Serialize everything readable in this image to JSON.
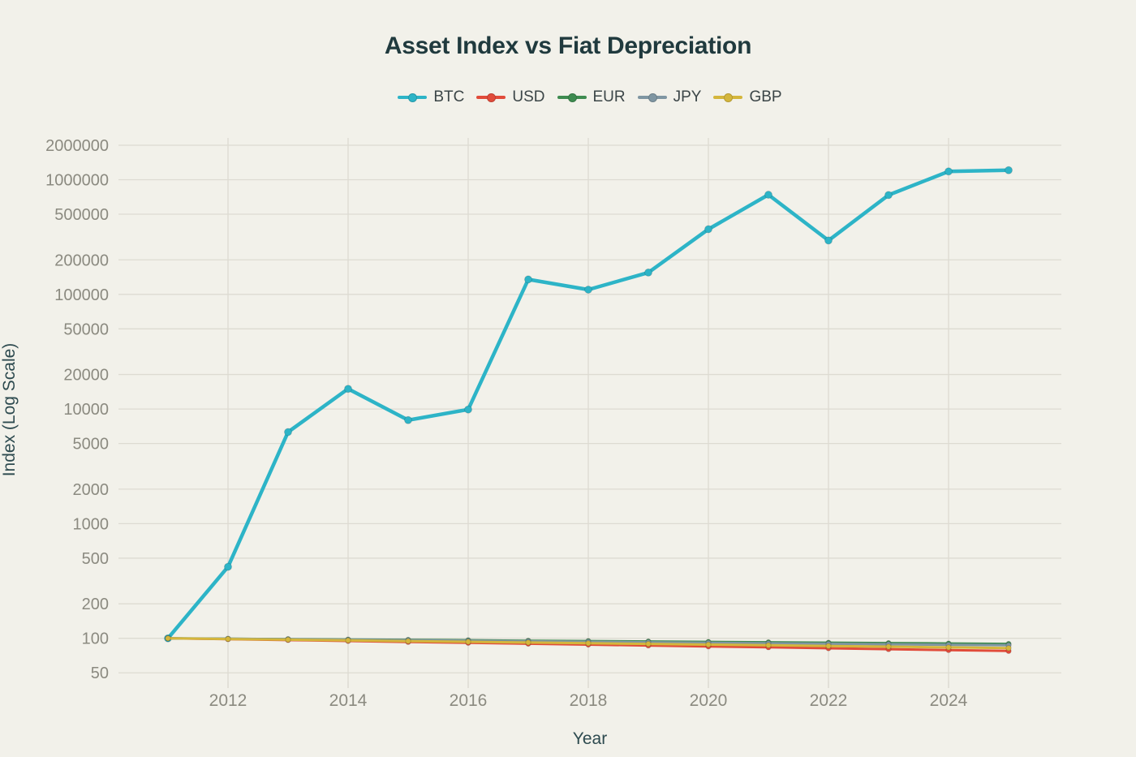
{
  "theme": {
    "background": "#f2f1ea",
    "title_color": "#203a3e",
    "axis_title_color": "#2d4a4f",
    "tick_label_color": "#8b8a80",
    "legend_text_color": "#3b4547",
    "gridline_color": "#dddbd2"
  },
  "chart_data": {
    "type": "line",
    "title": "Asset Index vs Fiat Depreciation",
    "xlabel": "Year",
    "ylabel": "Index (Log Scale)",
    "y_scale": "log",
    "grid": true,
    "legend_position": "top-center",
    "legend_entries": [
      "BTC",
      "USD",
      "EUR",
      "JPY",
      "GBP"
    ],
    "x_years": [
      2011,
      2012,
      2013,
      2014,
      2015,
      2016,
      2017,
      2018,
      2019,
      2020,
      2021,
      2022,
      2023,
      2024,
      2025
    ],
    "x_tick_years": [
      2012,
      2014,
      2016,
      2018,
      2020,
      2022,
      2024
    ],
    "x_tick_labels": [
      "2012",
      "2014",
      "2016",
      "2018",
      "2020",
      "2022",
      "2024"
    ],
    "y_ticks": [
      50,
      100,
      200,
      500,
      1000,
      2000,
      5000,
      10000,
      20000,
      50000,
      100000,
      200000,
      500000,
      1000000,
      2000000
    ],
    "y_tick_labels": [
      "50",
      "100",
      "200",
      "500",
      "1000",
      "2000",
      "5000",
      "10000",
      "20000",
      "50000",
      "100000",
      "200000",
      "500000",
      "1000000",
      "2000000"
    ],
    "ylim": [
      42,
      2320000
    ],
    "xlim": [
      2010.2,
      2025.9
    ],
    "series": [
      {
        "name": "BTC",
        "color": "#2db4c7",
        "values": [
          100,
          420,
          6300,
          15000,
          8000,
          9900,
          135000,
          110000,
          155000,
          370000,
          740000,
          295000,
          735000,
          1180000,
          1210000
        ]
      },
      {
        "name": "USD",
        "color": "#e14b3a",
        "values": [
          100,
          98.2,
          96.4,
          94.7,
          93.0,
          91.3,
          89.7,
          88.1,
          86.5,
          84.9,
          83.4,
          81.9,
          80.4,
          79.0,
          77.5
        ]
      },
      {
        "name": "EUR",
        "color": "#3e8b50",
        "values": [
          100,
          99.2,
          98.4,
          97.6,
          96.9,
          96.1,
          95.3,
          94.6,
          93.8,
          93.1,
          92.3,
          91.6,
          90.8,
          90.1,
          89.4
        ]
      },
      {
        "name": "JPY",
        "color": "#7f96a2",
        "values": [
          100,
          99.0,
          98.0,
          97.0,
          96.1,
          95.1,
          94.1,
          93.2,
          92.3,
          91.4,
          90.4,
          89.5,
          88.6,
          87.8,
          86.9
        ]
      },
      {
        "name": "GBP",
        "color": "#d4b63c",
        "values": [
          100,
          98.6,
          97.2,
          95.9,
          94.5,
          93.2,
          91.9,
          90.6,
          89.4,
          88.1,
          86.9,
          85.7,
          84.5,
          83.3,
          82.1
        ]
      }
    ]
  }
}
